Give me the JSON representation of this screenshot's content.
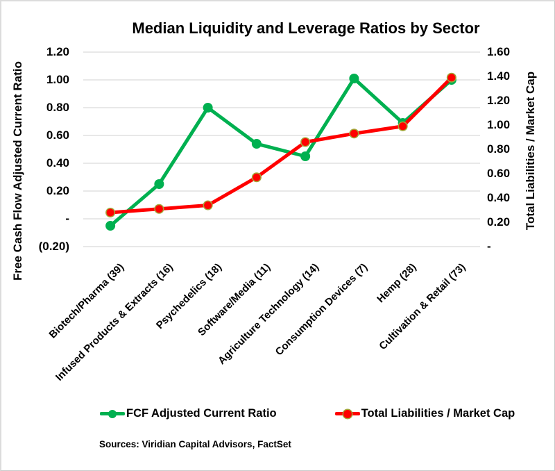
{
  "title": "Median Liquidity and Leverage Ratios by Sector",
  "source_note": "Sources: Viridian Capital Advisors, FactSet",
  "colors": {
    "fcf_series": "#00B050",
    "liabilities_series": "#FF0000",
    "liabilities_marker_ring": "#A3A83B",
    "gridline": "#D9D9D9",
    "text": "#000000"
  },
  "chart_data": {
    "type": "line",
    "title": "Median Liquidity and Leverage Ratios by Sector",
    "categories": [
      "Biotech/Pharma (39)",
      "Infused Products & Extracts (16)",
      "Psychedelics (18)",
      "Software/Media (11)",
      "Agriculture Technology (14)",
      "Consumption Devices (7)",
      "Hemp (28)",
      "Cultivation & Retail (73)"
    ],
    "series": [
      {
        "name": "FCF Adjusted Current Ratio",
        "axis": "left",
        "color": "#00B050",
        "marker_outline_color": null,
        "values": [
          -0.05,
          0.25,
          0.8,
          0.54,
          0.45,
          1.01,
          0.69,
          1.0
        ]
      },
      {
        "name": "Total Liabilities / Market Cap",
        "axis": "right",
        "color": "#FF0000",
        "marker_outline_color": "#A3A83B",
        "values": [
          0.28,
          0.31,
          0.34,
          0.57,
          0.86,
          0.93,
          0.99,
          1.39
        ]
      }
    ],
    "left_axis": {
      "label": "Free Cash Flow Adjusted Current Ratio",
      "min": -0.2,
      "max": 1.2,
      "ticks": [
        "1.20",
        "1.00",
        "0.80",
        "0.60",
        "0.40",
        "0.20",
        "-",
        "(0.20)"
      ],
      "tick_values": [
        1.2,
        1.0,
        0.8,
        0.6,
        0.4,
        0.2,
        0,
        -0.2
      ]
    },
    "right_axis": {
      "label": "Total Liabilities / Market Cap",
      "min": 0,
      "max": 1.6,
      "ticks": [
        "1.60",
        "1.40",
        "1.20",
        "1.00",
        "0.80",
        "0.60",
        "0.40",
        "0.20",
        "-"
      ],
      "tick_values": [
        1.6,
        1.4,
        1.2,
        1.0,
        0.8,
        0.6,
        0.4,
        0.2,
        0
      ]
    },
    "grid": "horizontal",
    "legend_position": "bottom"
  }
}
